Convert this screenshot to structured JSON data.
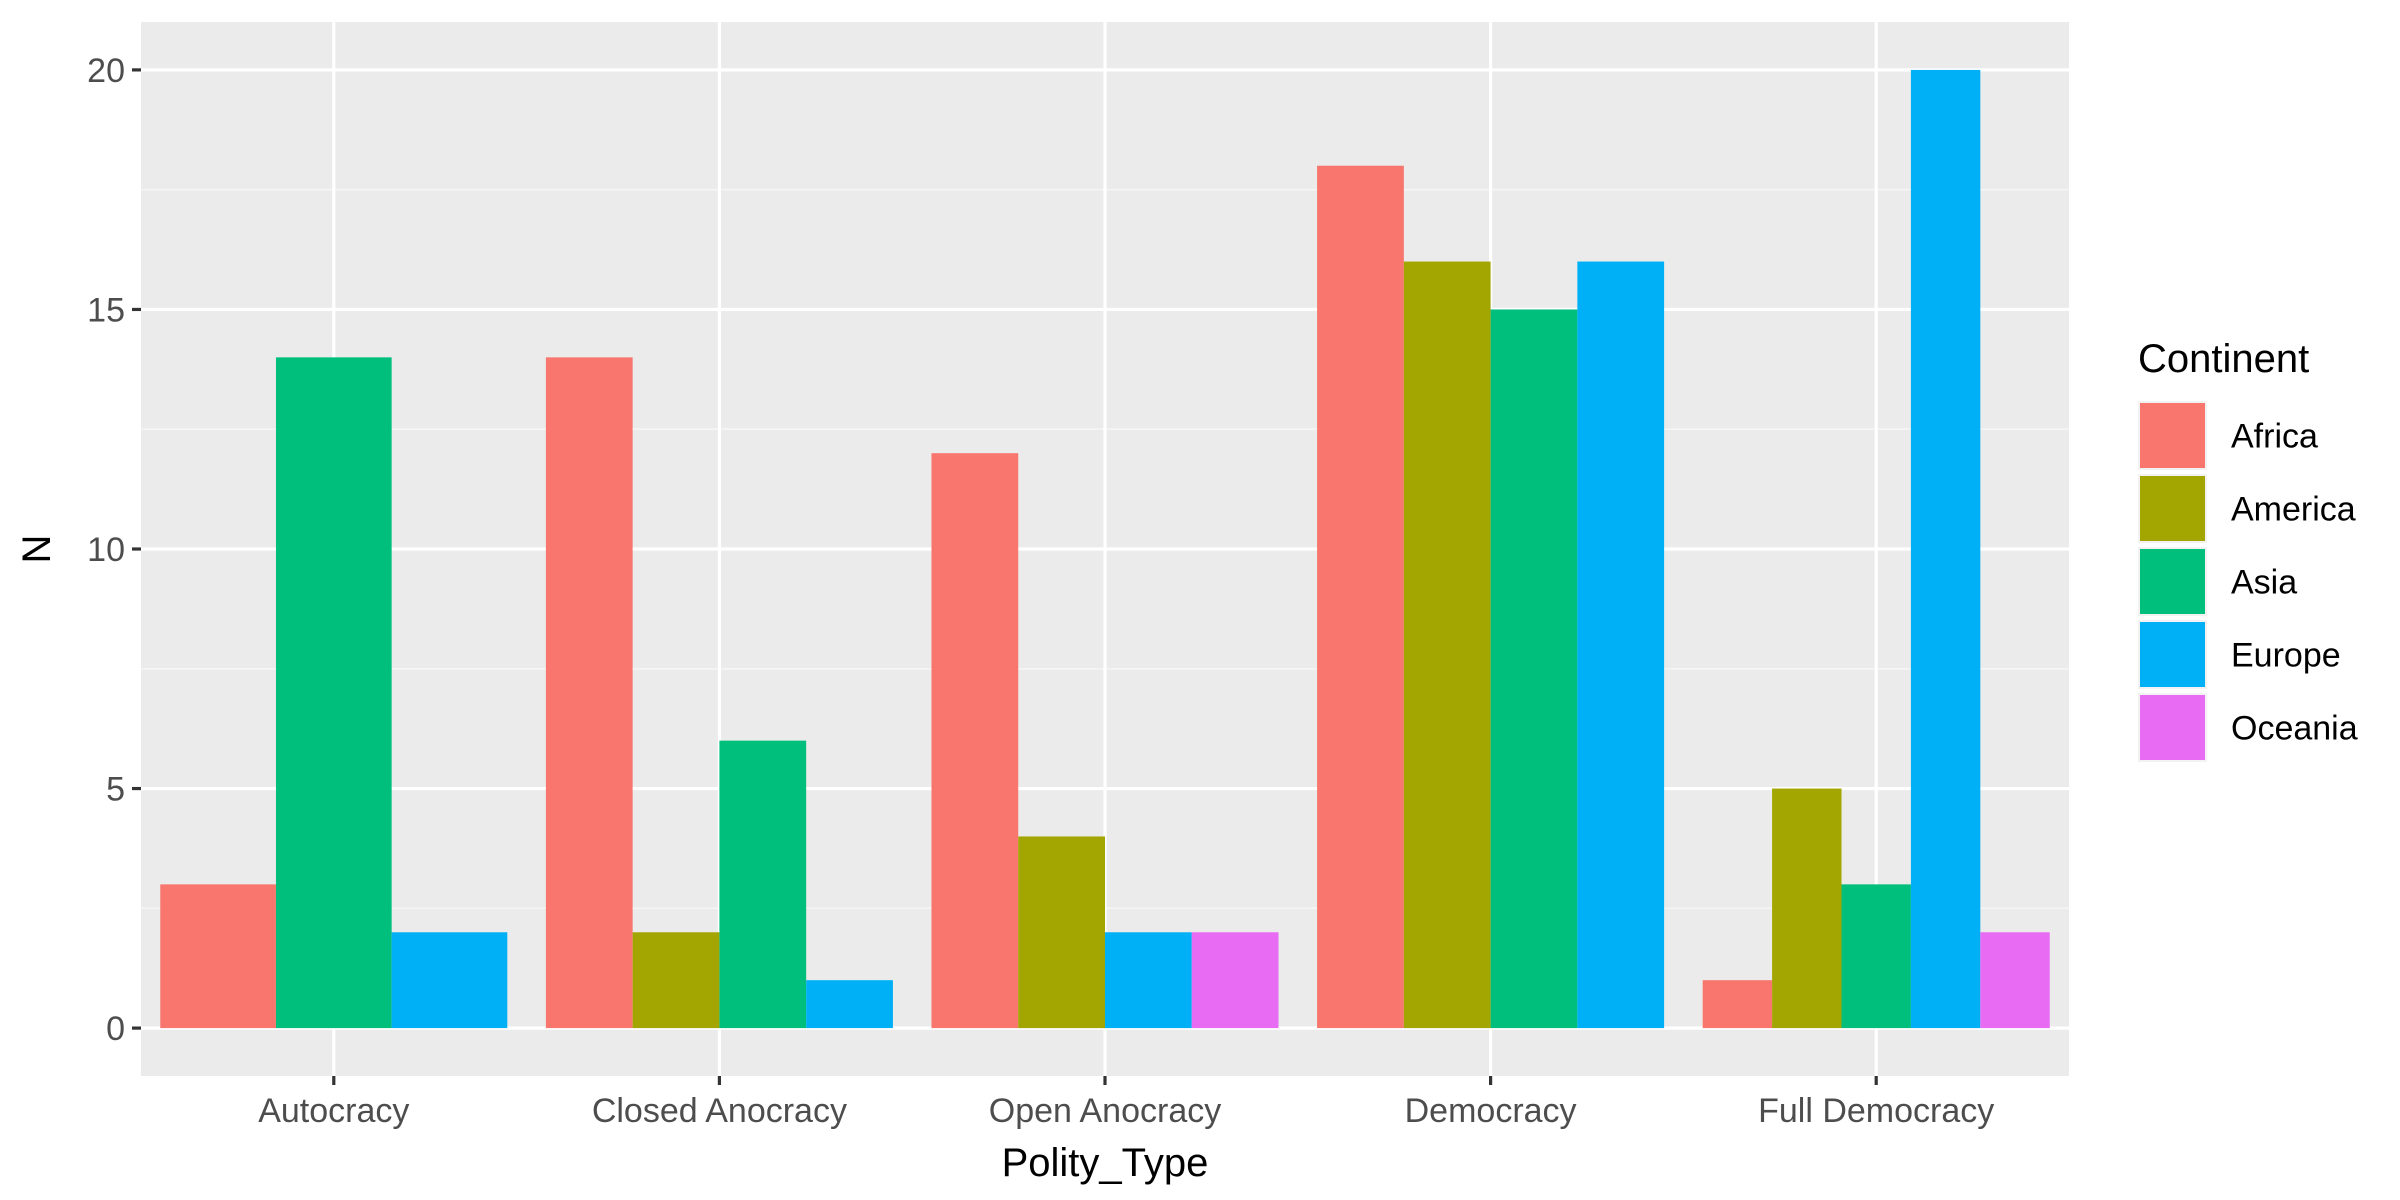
{
  "chart_data": {
    "type": "bar",
    "xlabel": "Polity_Type",
    "ylabel": "N",
    "ylim": [
      -1,
      21
    ],
    "yticks": [
      0,
      5,
      10,
      15,
      20
    ],
    "grid": true,
    "legend_placement": "right",
    "legend_title": "Continent",
    "categories": [
      "Autocracy",
      "Closed Anocracy",
      "Open Anocracy",
      "Democracy",
      "Full Democracy"
    ],
    "series": [
      {
        "name": "Africa",
        "color": "#F8766D",
        "values": [
          3,
          14,
          12,
          18,
          1
        ]
      },
      {
        "name": "America",
        "color": "#A3A500",
        "values": [
          null,
          2,
          4,
          16,
          5
        ]
      },
      {
        "name": "Asia",
        "color": "#00BF7D",
        "values": [
          14,
          6,
          null,
          15,
          3
        ]
      },
      {
        "name": "Europe",
        "color": "#00B0F6",
        "values": [
          2,
          1,
          2,
          16,
          20
        ]
      },
      {
        "name": "Oceania",
        "color": "#E76BF3",
        "values": [
          null,
          null,
          2,
          null,
          2
        ]
      }
    ]
  },
  "colors": {
    "panel_background": "#EBEBEB",
    "grid_major": "#FFFFFF",
    "grid_minor": "#F5F5F5",
    "axis_text": "#4D4D4D"
  }
}
